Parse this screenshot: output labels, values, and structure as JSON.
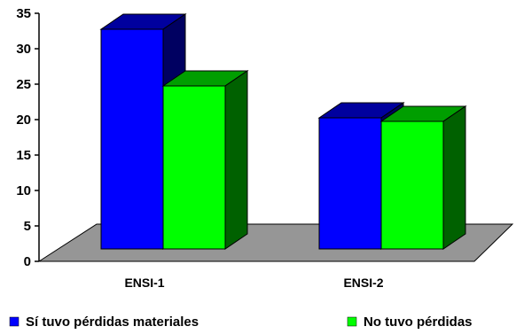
{
  "chart_data": {
    "type": "bar",
    "categories": [
      "ENSI-1",
      "ENSI-2"
    ],
    "series": [
      {
        "name": "Sí tuvo pérdidas materiales",
        "values": [
          31,
          18.5
        ],
        "color": "#0000ff"
      },
      {
        "name": "No tuvo pérdidas",
        "values": [
          23,
          18
        ],
        "color": "#00ff00"
      }
    ],
    "ylim": [
      0,
      35
    ],
    "yticks": [
      "0",
      "5",
      "10",
      "15",
      "20",
      "25",
      "30",
      "35"
    ],
    "grid": false,
    "three_d": true,
    "legend_position": "bottom",
    "floor_color": "#969696"
  }
}
